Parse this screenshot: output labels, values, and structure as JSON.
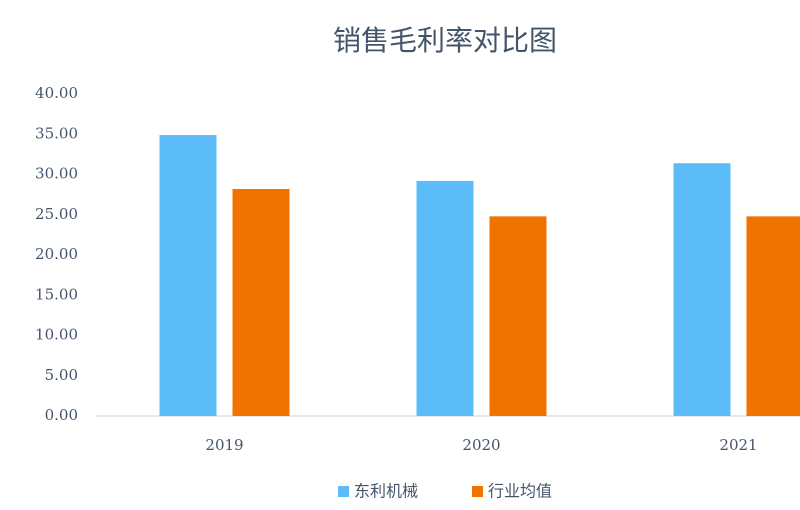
{
  "chart_data": {
    "type": "bar",
    "title": "销售毛利率对比图",
    "categories": [
      "2019",
      "2020",
      "2021"
    ],
    "series": [
      {
        "name": "东利机械",
        "color": "#5bbcf8",
        "values": [
          34.9,
          29.2,
          31.4
        ]
      },
      {
        "name": "行业均值",
        "color": "#f07300",
        "values": [
          28.2,
          24.8,
          24.8
        ]
      }
    ],
    "ylim": [
      0,
      40
    ],
    "yticks": [
      {
        "value": 0,
        "label": "0.00"
      },
      {
        "value": 5,
        "label": "5.00"
      },
      {
        "value": 10,
        "label": "10.00"
      },
      {
        "value": 15,
        "label": "15.00"
      },
      {
        "value": 20,
        "label": "20.00"
      },
      {
        "value": 25,
        "label": "25.00"
      },
      {
        "value": 30,
        "label": "30.00"
      },
      {
        "value": 35,
        "label": "35.00"
      },
      {
        "value": 40,
        "label": "40.00"
      }
    ],
    "grid": false
  }
}
